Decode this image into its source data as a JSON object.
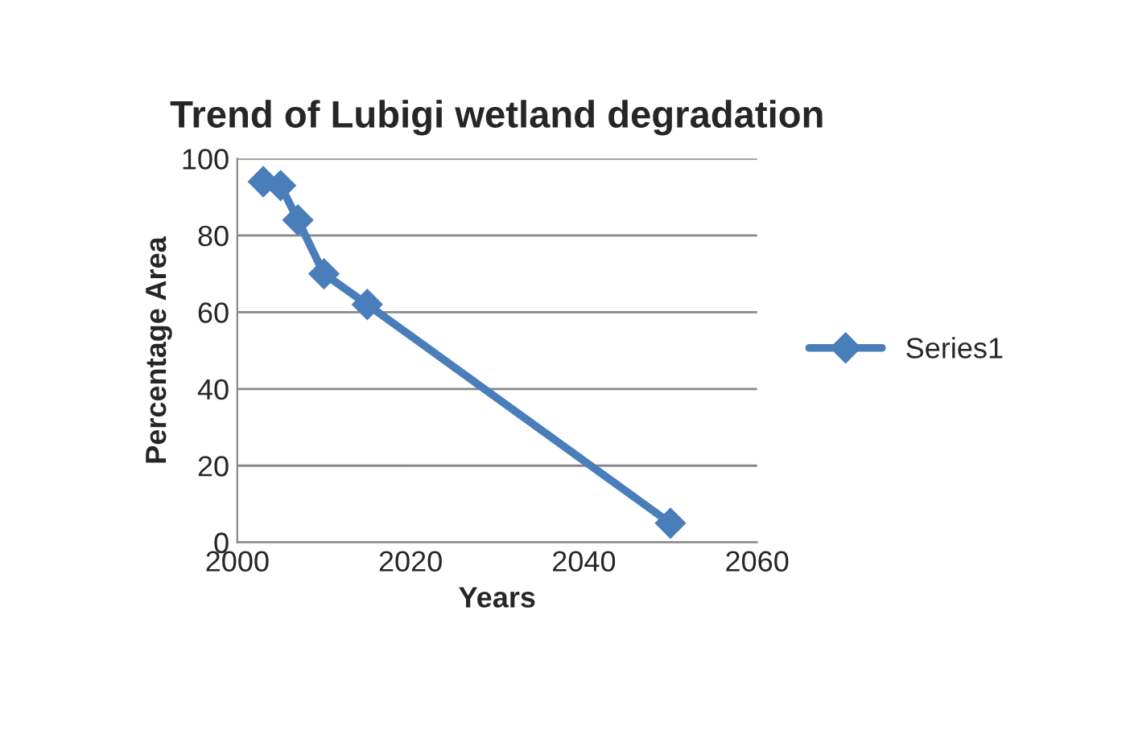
{
  "chart_data": {
    "type": "line",
    "title": "Trend of Lubigi wetland degradation",
    "xlabel": "Years",
    "ylabel": "Percentage Area",
    "series": [
      {
        "name": "Series1",
        "color": "#4a7ebb",
        "x": [
          2003,
          2005,
          2007,
          2010,
          2015,
          2050
        ],
        "values": [
          94,
          93,
          84,
          70,
          62,
          5
        ]
      }
    ],
    "xlim": [
      2000,
      2060
    ],
    "xticks": [
      2000,
      2020,
      2040,
      2060
    ],
    "ylim": [
      0,
      100
    ],
    "yticks": [
      0,
      20,
      40,
      60,
      80,
      100
    ],
    "grid": "y",
    "legend": "right",
    "marker": "diamond",
    "line_style": "solid"
  }
}
